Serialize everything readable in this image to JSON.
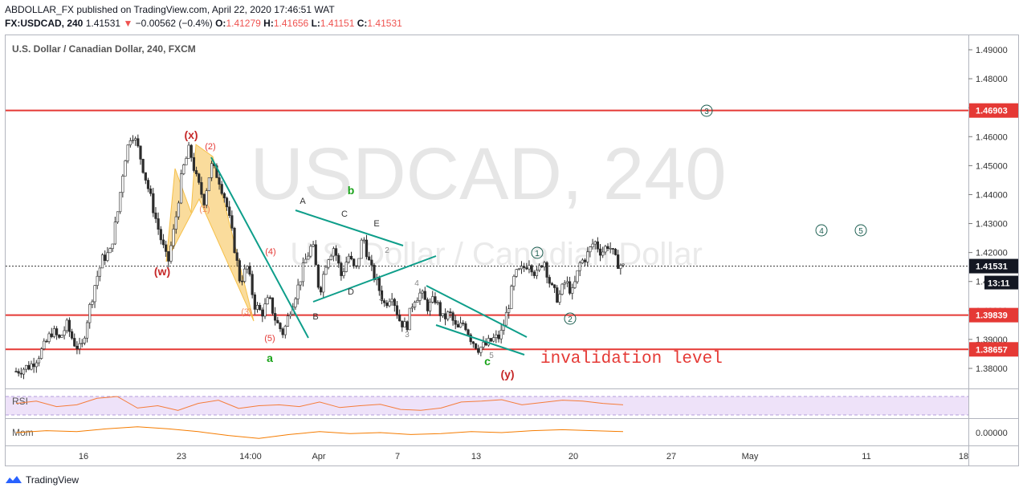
{
  "header": {
    "publisher_line": "ABDOLLAR_FX published on TradingView.com, April 22, 2020 17:46:51 WAT",
    "symbol_tf": "FX:USDCAD, 240",
    "last": "1.41531",
    "change": "−0.00562 (−0.4%)",
    "o_label": "O:",
    "o": "1.41279",
    "h_label": "H:",
    "h": "1.41656",
    "l_label": "L:",
    "l": "1.41151",
    "c_label": "C:",
    "c": "1.41531"
  },
  "chart_title": "U.S. Dollar / Canadian Dollar, 240, FXCM",
  "watermark": {
    "main": "USDCAD, 240",
    "sub": "U.S. Dollar / Canadian Dollar"
  },
  "brand": "TradingView",
  "colors": {
    "up": "#2c2c2c",
    "down": "#2c2c2c",
    "level": "#e53935",
    "wave": "#0e9e8a",
    "triangle": "#f5c04a",
    "rsi": "#f57c3a",
    "rsi_band": "#e7d5f7",
    "mom": "#f57c00",
    "green": "#1aa31a"
  },
  "chart_data": [
    {
      "type": "candlestick",
      "title": "U.S. Dollar / Canadian Dollar, 240, FXCM",
      "y_ticks": [
        1.38,
        1.39,
        1.4,
        1.41,
        1.42,
        1.43,
        1.44,
        1.45,
        1.46,
        1.47,
        1.48,
        1.49
      ],
      "y_tick_labels": [
        "1.38000",
        "1.39000",
        "1.40000",
        "1.41000",
        "1.42000",
        "1.43000",
        "1.44000",
        "1.45000",
        "1.46000",
        "1.47000",
        "1.48000",
        "1.49000"
      ],
      "ylim": [
        1.3765,
        1.4935
      ],
      "x_labels": [
        "16",
        "23",
        "14:00",
        "Apr",
        "7",
        "13",
        "20",
        "27",
        "May",
        "11",
        "18"
      ],
      "price_levels": [
        {
          "value": 1.46903,
          "label": "1.46903"
        },
        {
          "value": 1.39839,
          "label": "1.39839"
        },
        {
          "value": 1.38657,
          "label": "1.38657"
        }
      ],
      "current_price": {
        "value": 1.41531,
        "label": "1.41531",
        "countdown": "13:11"
      },
      "annotations": {
        "invalidation_text": "invalidation level",
        "wave_w": "(w)",
        "wave_x": "(x)",
        "wave_y": "(y)",
        "wave_a": "a",
        "wave_b": "b",
        "wave_c": "c",
        "sub_1": "(1)",
        "sub_2": "(2)",
        "sub_3": "(3)",
        "sub_4": "(4)",
        "sub_5": "(5)",
        "tri_A": "A",
        "tri_B": "B",
        "tri_C": "C",
        "tri_D": "D",
        "tri_E": "E",
        "b_1": "1",
        "b_2": "2",
        "b_3": "3",
        "b_4": "4",
        "b_5": "5",
        "circ_1": "1",
        "circ_2": "2",
        "circ_3": "3",
        "circ_4": "4",
        "circ_5": "5"
      },
      "series_path": [
        [
          1.379,
          1.38,
          1.381,
          1.384,
          1.388,
          1.393,
          1.39,
          1.395,
          1.389,
          1.386,
          1.399,
          1.41,
          1.418,
          1.42,
          1.433,
          1.452,
          1.462,
          1.455,
          1.445,
          1.435,
          1.425,
          1.416
        ],
        [
          1.416,
          1.43,
          1.448,
          1.456,
          1.445,
          1.438,
          1.45,
          1.446,
          1.438,
          1.425,
          1.41,
          1.415,
          1.402,
          1.399,
          1.404,
          1.396,
          1.392,
          1.401,
          1.408,
          1.417,
          1.423,
          1.406
        ],
        [
          1.406,
          1.418,
          1.422,
          1.412,
          1.419,
          1.413,
          1.426,
          1.415,
          1.409,
          1.402,
          1.406,
          1.397,
          1.394,
          1.404,
          1.406,
          1.401,
          1.404,
          1.397,
          1.399,
          1.393,
          1.396,
          1.39
        ],
        [
          1.39,
          1.387,
          1.388,
          1.39,
          1.391,
          1.4,
          1.412,
          1.414,
          1.417,
          1.412,
          1.418,
          1.408,
          1.404,
          1.41,
          1.406,
          1.416,
          1.419,
          1.424,
          1.42,
          1.423,
          1.417,
          1.415
        ]
      ]
    },
    {
      "type": "line",
      "title": "RSI",
      "values": [
        55,
        60,
        48,
        52,
        66,
        70,
        45,
        50,
        40,
        55,
        62,
        44,
        50,
        52,
        48,
        58,
        46,
        50,
        53,
        42,
        40,
        45,
        58,
        60,
        63,
        52,
        57,
        62,
        60,
        55,
        52
      ]
    },
    {
      "type": "line",
      "title": "Mom",
      "y_tick_label": "0.00000",
      "values": [
        0.0,
        0.002,
        0.001,
        0.004,
        0.006,
        0.004,
        0.001,
        -0.003,
        -0.006,
        -0.002,
        0.001,
        -0.001,
        0.0,
        -0.002,
        -0.001,
        0.001,
        0.0,
        0.002,
        0.003,
        0.002,
        0.001
      ]
    }
  ]
}
